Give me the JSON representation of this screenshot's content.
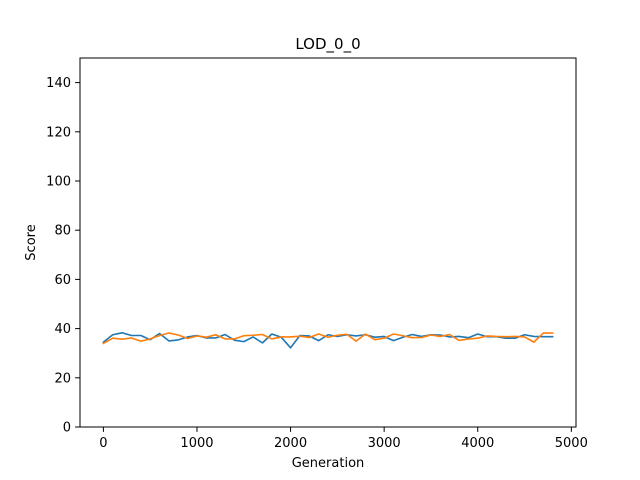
{
  "chart_data": {
    "type": "line",
    "title": "LOD_0_0",
    "xlabel": "Generation",
    "ylabel": "Score",
    "xlim": [
      -250,
      5050
    ],
    "ylim": [
      0,
      150
    ],
    "xticks": [
      0,
      1000,
      2000,
      3000,
      4000,
      5000
    ],
    "yticks": [
      0,
      20,
      40,
      60,
      80,
      100,
      120,
      140
    ],
    "grid": false,
    "x": [
      0,
      100,
      200,
      300,
      400,
      500,
      600,
      700,
      800,
      900,
      1000,
      1100,
      1200,
      1300,
      1400,
      1500,
      1600,
      1700,
      1800,
      1900,
      2000,
      2100,
      2200,
      2300,
      2400,
      2500,
      2600,
      2700,
      2800,
      2900,
      3000,
      3100,
      3200,
      3300,
      3400,
      3500,
      3600,
      3700,
      3800,
      3900,
      4000,
      4100,
      4200,
      4300,
      4400,
      4500,
      4600,
      4700,
      4800
    ],
    "series": [
      {
        "color": "#1f77b4",
        "values": [
          34.5,
          37.5,
          38.3,
          37.2,
          37.2,
          35.5,
          38.0,
          35.0,
          35.4,
          36.6,
          37.2,
          36.2,
          36.2,
          37.6,
          35.3,
          34.7,
          36.6,
          34.2,
          37.8,
          36.5,
          32.2,
          37.2,
          37.0,
          35.1,
          37.5,
          36.8,
          37.5,
          37.0,
          37.5,
          36.5,
          36.8,
          35.1,
          36.5,
          37.6,
          36.8,
          37.5,
          37.4,
          36.6,
          36.8,
          36.3,
          37.8,
          36.7,
          36.7,
          36.1,
          36.1,
          37.5,
          36.8,
          36.7,
          36.7
        ]
      },
      {
        "color": "#ff7f0e",
        "values": [
          34.0,
          36.1,
          35.7,
          36.2,
          34.9,
          35.8,
          37.2,
          38.2,
          37.4,
          36.0,
          37.0,
          36.5,
          37.5,
          35.8,
          35.8,
          37.1,
          37.3,
          37.6,
          35.8,
          36.6,
          36.6,
          36.9,
          36.4,
          37.8,
          36.5,
          37.3,
          37.7,
          34.9,
          37.8,
          35.5,
          36.1,
          37.8,
          37.1,
          36.3,
          36.4,
          37.4,
          36.8,
          37.6,
          35.2,
          35.8,
          36.1,
          37.0,
          36.8,
          36.7,
          36.8,
          36.6,
          34.5,
          38.2,
          38.2
        ]
      }
    ]
  }
}
